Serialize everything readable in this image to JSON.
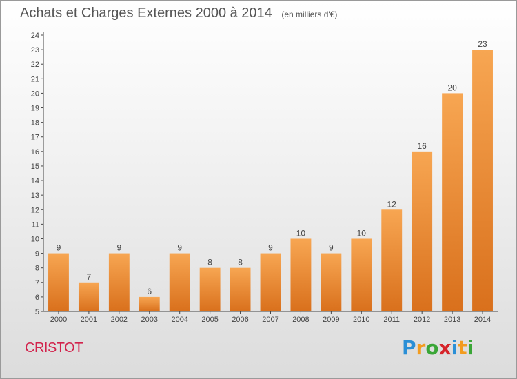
{
  "title": "Achats et Charges Externes 2000 à 2014",
  "subtitle": "(en milliers d'€)",
  "commune": "CRISTOT",
  "logo": {
    "letters": [
      "P",
      "r",
      "o",
      "x",
      "i",
      "t",
      "i"
    ],
    "colors": [
      "#2a8fd6",
      "#f39c1f",
      "#3aa637",
      "#d6242a",
      "#2a8fd6",
      "#f39c1f",
      "#3aa637"
    ]
  },
  "colors": {
    "bar_light": "#f7a652",
    "bar_dark": "#d9701c",
    "title": "#555555",
    "commune": "#d2234c"
  },
  "chart_data": {
    "type": "bar",
    "categories": [
      "2000",
      "2001",
      "2002",
      "2003",
      "2004",
      "2005",
      "2006",
      "2007",
      "2008",
      "2009",
      "2010",
      "2011",
      "2012",
      "2013",
      "2014"
    ],
    "values": [
      9,
      7,
      9,
      6,
      9,
      8,
      8,
      9,
      10,
      9,
      10,
      12,
      16,
      20,
      23
    ],
    "ylim": [
      5,
      24
    ],
    "yticks": [
      5,
      6,
      7,
      8,
      9,
      10,
      11,
      12,
      13,
      14,
      15,
      16,
      17,
      18,
      19,
      20,
      21,
      22,
      23,
      24
    ],
    "data_labels": true,
    "grid": false
  }
}
